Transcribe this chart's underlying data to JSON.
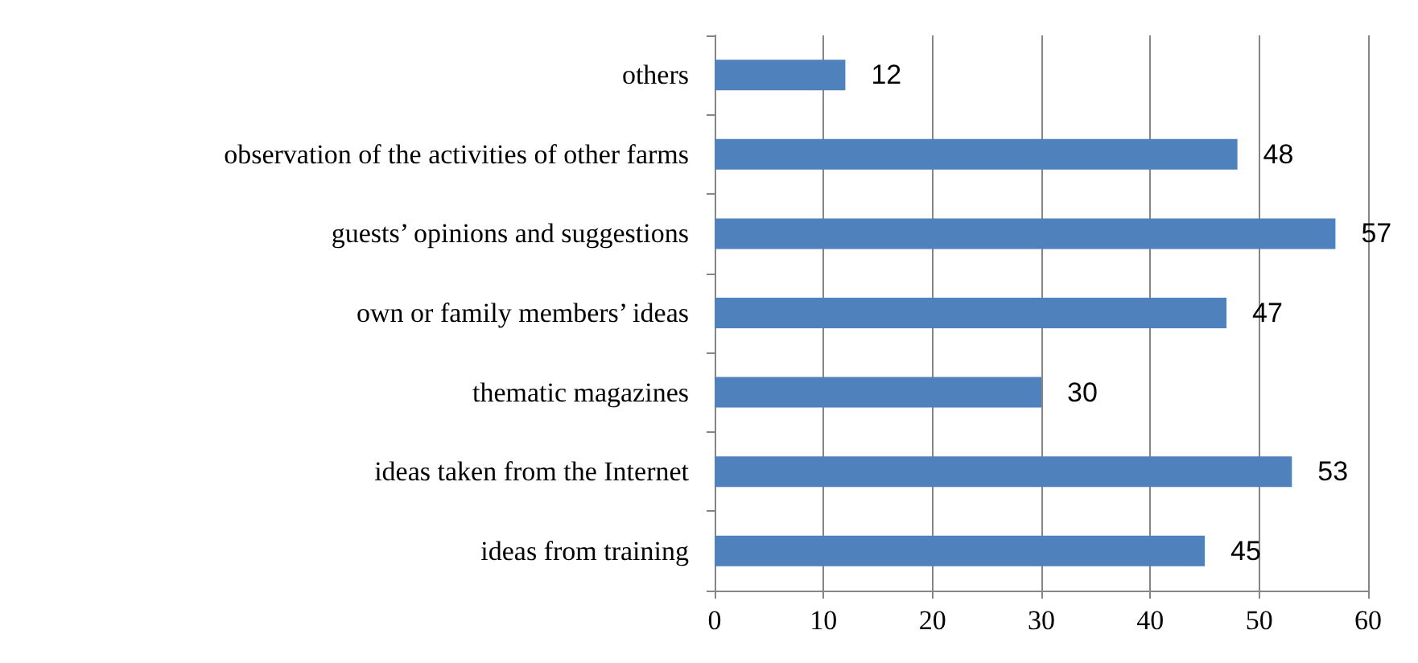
{
  "chart_data": {
    "type": "bar",
    "orientation": "horizontal",
    "categories": [
      "others",
      "observation of the activities of other farms",
      "guests’ opinions and suggestions",
      "own or family members’ ideas",
      "thematic magazines",
      "ideas taken from the Internet",
      "ideas from training"
    ],
    "values": [
      12,
      48,
      57,
      47,
      30,
      53,
      45
    ],
    "color": "#4f81bd",
    "xlim": [
      0,
      60
    ],
    "xticks": [
      0,
      10,
      20,
      30,
      40,
      50,
      60
    ],
    "grid": "x",
    "data_labels": true
  }
}
